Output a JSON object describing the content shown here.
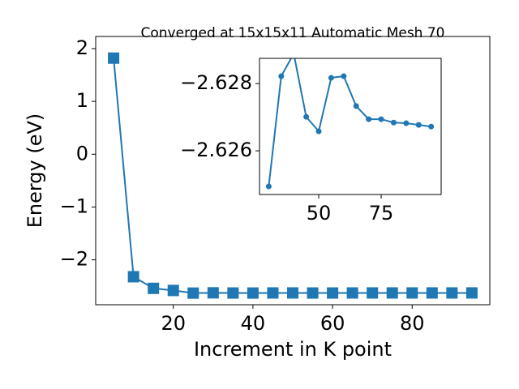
{
  "chart_data": [
    {
      "type": "line",
      "title": "Converged at 15x15x11 Automatic Mesh 70",
      "x_label": "Increment in K point",
      "y_label": "Energy (eV)",
      "x": [
        5,
        10,
        15,
        20,
        25,
        30,
        35,
        40,
        45,
        50,
        55,
        60,
        65,
        70,
        75,
        80,
        85,
        90,
        95
      ],
      "series": [
        {
          "color": "#1f77b4",
          "marker": "square",
          "values": [
            1.82,
            -2.32,
            -2.54,
            -2.58,
            -2.63,
            -2.62494,
            -2.62822,
            -2.62889,
            -2.62701,
            -2.62658,
            -2.62817,
            -2.62822,
            -2.62733,
            -2.62694,
            -2.62694,
            -2.62684,
            -2.62682,
            -2.62677,
            -2.62672
          ]
        }
      ],
      "xlim": [
        0.5,
        99.5
      ],
      "xticks": [
        20,
        40,
        60,
        80
      ],
      "ylim": [
        -2.85,
        2.23
      ],
      "yticks": [
        {
          "value": -2,
          "label": "−2"
        },
        {
          "value": -1,
          "label": "−1"
        },
        0,
        1,
        2
      ]
    },
    {
      "type": "line",
      "x": [
        30,
        35,
        40,
        45,
        50,
        55,
        60,
        65,
        70,
        75,
        80,
        85,
        90,
        95
      ],
      "series": [
        {
          "color": "#1f77b4",
          "marker": "circle",
          "values": [
            -2.62494,
            -2.62822,
            -2.62889,
            -2.62701,
            -2.62658,
            -2.62817,
            -2.62822,
            -2.62733,
            -2.62694,
            -2.62694,
            -2.62684,
            -2.62682,
            -2.62677,
            -2.62672
          ]
        }
      ],
      "xlim": [
        26.3,
        99
      ],
      "xticks": [
        50,
        75
      ],
      "ylim": [
        -2.6247,
        -2.62875
      ],
      "yticks": [
        {
          "value": -2.628,
          "label": "−2.628"
        },
        {
          "value": -2.626,
          "label": "−2.626"
        }
      ]
    }
  ]
}
